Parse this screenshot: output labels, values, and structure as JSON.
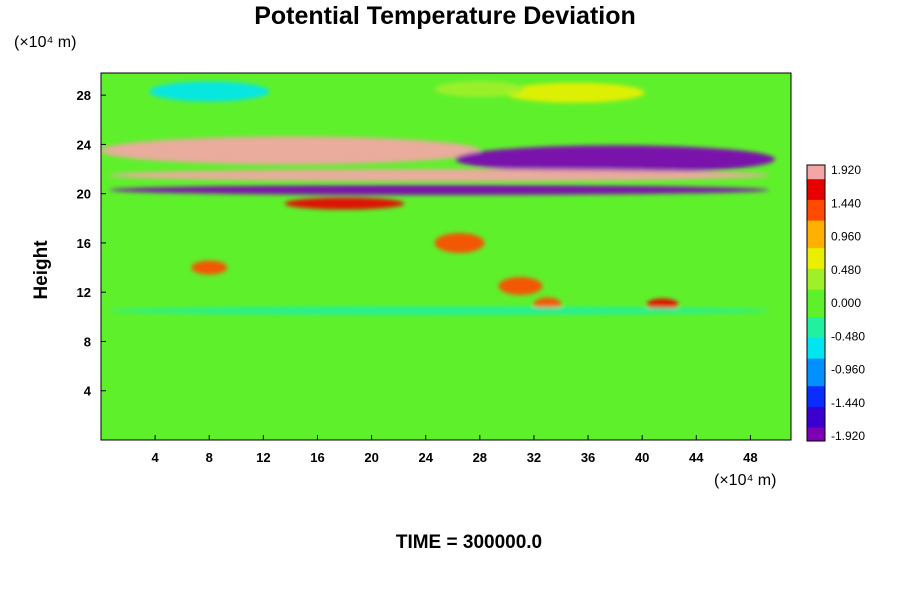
{
  "chart_data": {
    "type": "heatmap",
    "title": "Potential Temperature Deviation",
    "ylabel": "Height",
    "xlabel": "",
    "x_unit": "(×10⁴ m)",
    "y_unit": "(×10⁴ m)",
    "footer": "TIME = 300000.0",
    "xlim": [
      0,
      51
    ],
    "ylim": [
      0,
      29.8
    ],
    "x_ticks": [
      4,
      8,
      12,
      16,
      20,
      24,
      28,
      32,
      36,
      40,
      44,
      48
    ],
    "y_ticks": [
      4,
      8,
      12,
      16,
      20,
      24,
      28
    ],
    "colorbar": {
      "min": -1.92,
      "max": 1.92,
      "tick_labels": [
        "1.920",
        "1.440",
        "0.960",
        "0.480",
        "0.000",
        "-0.480",
        "-0.960",
        "-1.440",
        "-1.920"
      ]
    },
    "features": [
      {
        "x": 8,
        "y": 28.3,
        "value": -0.7
      },
      {
        "x": 35,
        "y": 28.2,
        "value": 0.5
      },
      {
        "x": 28,
        "y": 28.5,
        "value": 0.35
      },
      {
        "x": 14,
        "y": 23.5,
        "value": 1.9
      },
      {
        "x": 38,
        "y": 22.8,
        "value": -1.9
      },
      {
        "x": 25,
        "y": 21.5,
        "value": 1.95
      },
      {
        "x": 25,
        "y": 20.3,
        "value": -1.95
      },
      {
        "x": 18,
        "y": 19.2,
        "value": 1.5
      },
      {
        "x": 26.5,
        "y": 16,
        "value": 1.2
      },
      {
        "x": 8,
        "y": 14,
        "value": 1.3
      },
      {
        "x": 31,
        "y": 12.5,
        "value": 1.2
      },
      {
        "x": 33,
        "y": 11,
        "value": 1.4
      },
      {
        "x": 41.5,
        "y": 11,
        "value": 1.6
      },
      {
        "x": 25,
        "y": 10.5,
        "value": -0.4
      }
    ]
  },
  "colors": {
    "colormap": [
      "#7d00b5",
      "#3a00d0",
      "#0a2cff",
      "#0090ff",
      "#00e6f0",
      "#20f0a0",
      "#5ff02c",
      "#9ff028",
      "#e8f000",
      "#ffb000",
      "#ff4a00",
      "#e80000",
      "#f4a6a6"
    ]
  }
}
